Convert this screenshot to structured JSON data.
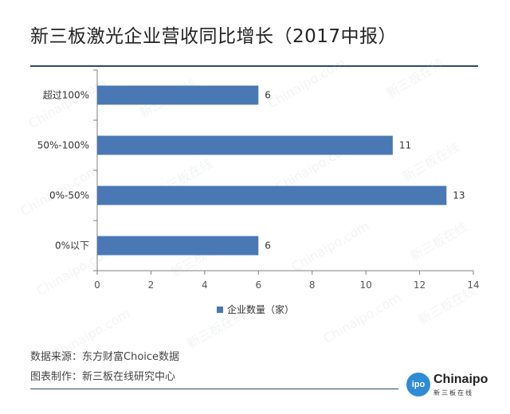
{
  "title": "新三板激光企业营收同比增长（2017中报）",
  "footer": {
    "source": "数据来源：东方财富Choice数据",
    "credit": "图表制作：新三板在线研究中心"
  },
  "brand": {
    "circle_text": "ipo",
    "name": "Chinaipo",
    "subtitle": "新三板在线"
  },
  "watermark": [
    "Chinaipo.com",
    "新三板在线"
  ],
  "chart_data": {
    "type": "bar",
    "orientation": "horizontal",
    "categories": [
      "超过100%",
      "50%-100%",
      "0%-50%",
      "0%以下"
    ],
    "series": [
      {
        "name": "企业数量（家）",
        "values": [
          6,
          11,
          13,
          6
        ]
      }
    ],
    "xlim": [
      0,
      14
    ],
    "xticks": [
      0,
      2,
      4,
      6,
      8,
      10,
      12,
      14
    ],
    "grid": false,
    "legend_position": "bottom",
    "bar_color": "#4a78b5",
    "axis_color": "#7f7f7f"
  }
}
